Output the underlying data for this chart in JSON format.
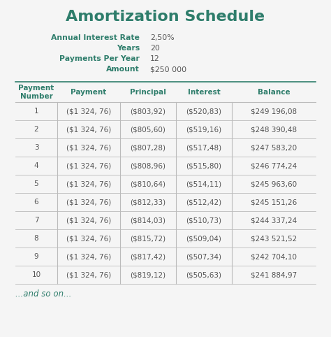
{
  "title": "Amortization Schedule",
  "teal": "#2E7D6B",
  "bg_color": "#F5F5F5",
  "info_labels": [
    "Annual Interest Rate",
    "Years",
    "Payments Per Year",
    "Amount"
  ],
  "info_values": [
    "2,50%",
    "20",
    "12",
    "$250 000"
  ],
  "col_headers": [
    "Payment\nNumber",
    "Payment",
    "Principal",
    "Interest",
    "Balance"
  ],
  "rows": [
    [
      "1",
      "($1 324, 76)",
      "($803,92)",
      "($520,83)",
      "$249 196,08"
    ],
    [
      "2",
      "($1 324, 76)",
      "($805,60)",
      "($519,16)",
      "$248 390,48"
    ],
    [
      "3",
      "($1 324, 76)",
      "($807,28)",
      "($517,48)",
      "$247 583,20"
    ],
    [
      "4",
      "($1 324, 76)",
      "($808,96)",
      "($515,80)",
      "$246 774,24"
    ],
    [
      "5",
      "($1 324, 76)",
      "($810,64)",
      "($514,11)",
      "$245 963,60"
    ],
    [
      "6",
      "($1 324, 76)",
      "($812,33)",
      "($512,42)",
      "$245 151,26"
    ],
    [
      "7",
      "($1 324, 76)",
      "($814,03)",
      "($510,73)",
      "$244 337,24"
    ],
    [
      "8",
      "($1 324, 76)",
      "($815,72)",
      "($509,04)",
      "$243 521,52"
    ],
    [
      "9",
      "($1 324, 76)",
      "($817,42)",
      "($507,34)",
      "$242 704,10"
    ],
    [
      "10",
      "($1 324, 76)",
      "($819,12)",
      "($505,63)",
      "$241 884,97"
    ]
  ],
  "footer": "...and so on...",
  "line_color": "#BBBBBB",
  "text_color": "#555555",
  "cell_fontsize": 7.5,
  "header_fontsize": 7.5,
  "info_fontsize": 7.8,
  "title_fontsize": 16
}
